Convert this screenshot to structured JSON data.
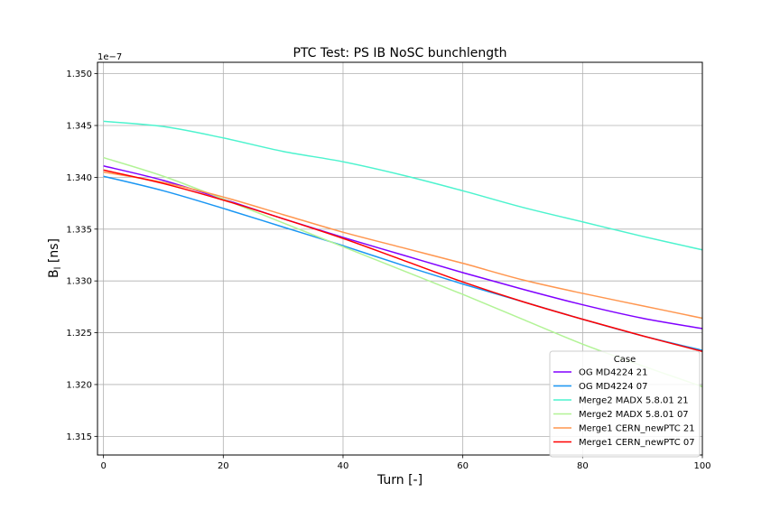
{
  "chart_data": {
    "type": "line",
    "title": "PTC Test: PS IB NoSC bunchlength",
    "xlabel": "Turn [-]",
    "ylabel_main": "B",
    "ylabel_sub": "l",
    "ylabel_unit": " [ns]",
    "offset_text": "1e−7",
    "xlim": [
      -1,
      100
    ],
    "ylim": [
      1.3132,
      1.3511
    ],
    "x_ticks": [
      0,
      20,
      40,
      60,
      80,
      100
    ],
    "y_ticks": [
      1.315,
      1.32,
      1.325,
      1.33,
      1.335,
      1.34,
      1.345,
      1.35
    ],
    "y_tick_labels": [
      "1.315",
      "1.320",
      "1.325",
      "1.330",
      "1.335",
      "1.340",
      "1.345",
      "1.350"
    ],
    "grid": true,
    "legend": {
      "title": "Case",
      "placement": "lower-right"
    },
    "x": [
      0,
      10,
      20,
      30,
      40,
      50,
      60,
      70,
      80,
      90,
      100
    ],
    "series": [
      {
        "name": "OG MD4224 21",
        "color": "#8000ff",
        "values": [
          1.3411,
          1.3397,
          1.3379,
          1.336,
          1.3342,
          1.3325,
          1.3308,
          1.3292,
          1.3277,
          1.3264,
          1.3254
        ]
      },
      {
        "name": "OG MD4224 07",
        "color": "#1996f3",
        "values": [
          1.3401,
          1.3387,
          1.337,
          1.3352,
          1.3334,
          1.3315,
          1.3297,
          1.328,
          1.3263,
          1.3247,
          1.3233
        ]
      },
      {
        "name": "Merge2 MADX 5.8.01 21",
        "color": "#4df3ce",
        "values": [
          1.3454,
          1.3449,
          1.3438,
          1.3425,
          1.3415,
          1.3402,
          1.3387,
          1.3371,
          1.3357,
          1.3343,
          1.333
        ]
      },
      {
        "name": "Merge2 MADX 5.8.01 07",
        "color": "#b2f396",
        "values": [
          1.3419,
          1.3401,
          1.3379,
          1.3356,
          1.3333,
          1.331,
          1.3287,
          1.3263,
          1.3239,
          1.3218,
          1.3198
        ]
      },
      {
        "name": "Merge1 CERN_newPTC 21",
        "color": "#ff964f",
        "values": [
          1.3405,
          1.3395,
          1.3381,
          1.3364,
          1.3347,
          1.3332,
          1.3317,
          1.3301,
          1.3288,
          1.3276,
          1.3264
        ]
      },
      {
        "name": "Merge1 CERN_newPTC 07",
        "color": "#ff0000",
        "values": [
          1.3407,
          1.3394,
          1.3378,
          1.336,
          1.3341,
          1.332,
          1.3299,
          1.328,
          1.3263,
          1.3247,
          1.3232
        ]
      }
    ]
  }
}
